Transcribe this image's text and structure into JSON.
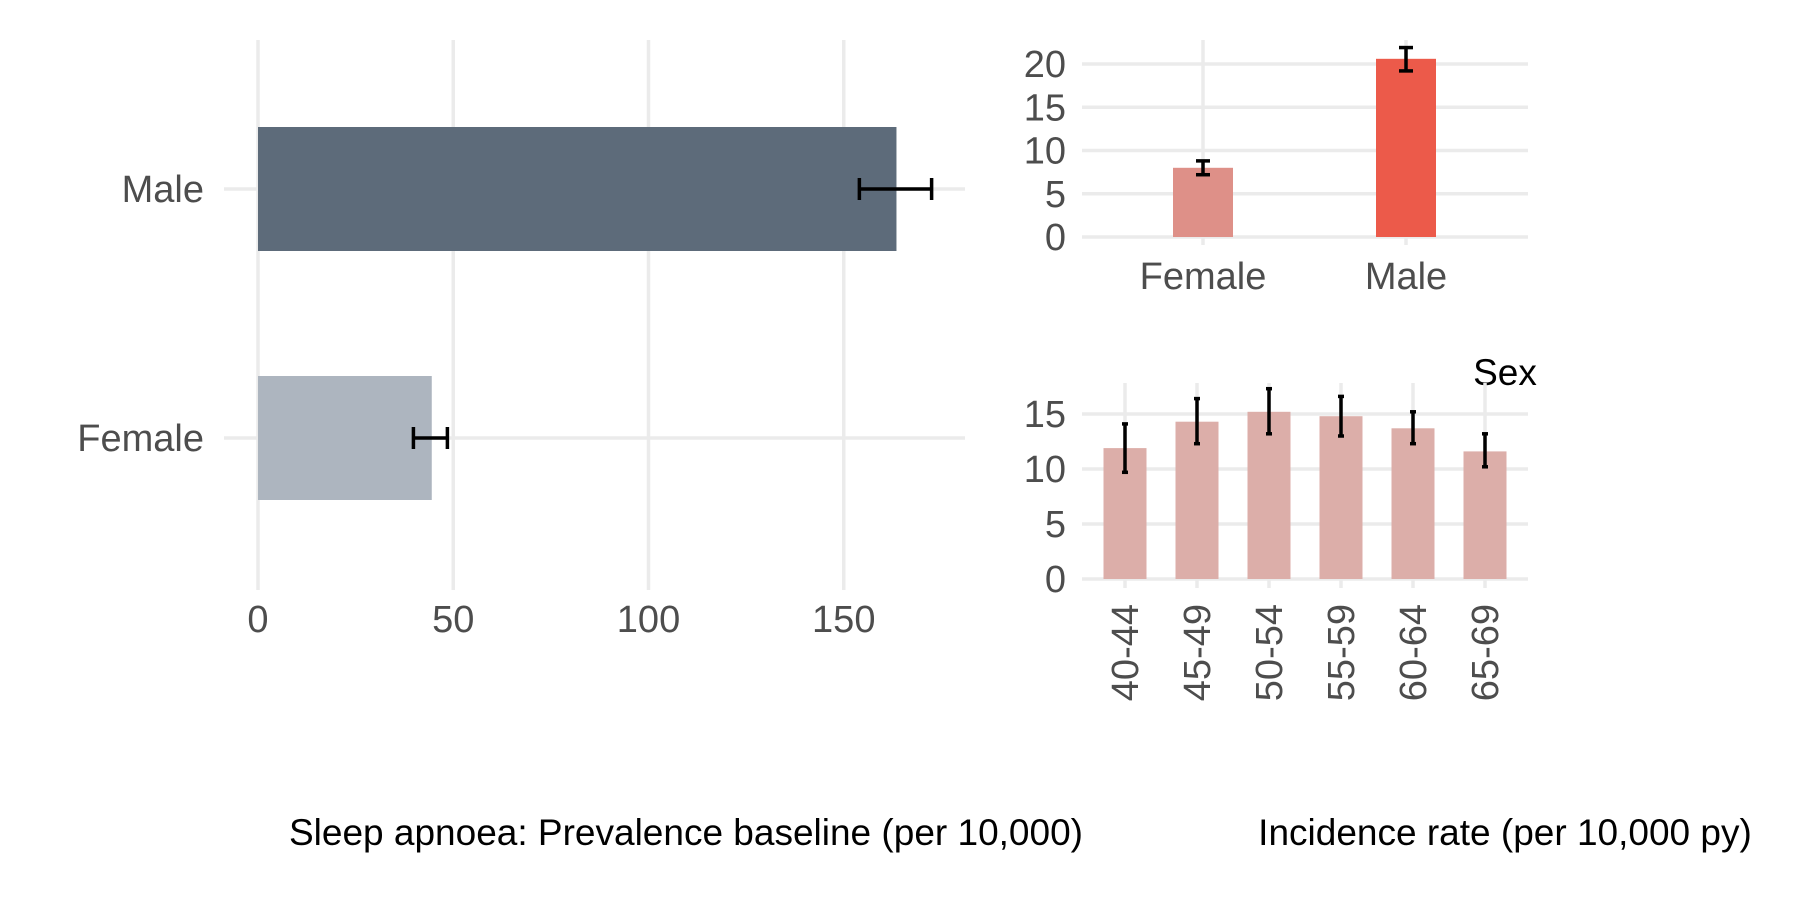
{
  "chart_data": [
    {
      "type": "bar",
      "orientation": "horizontal",
      "categories": [
        "Female",
        "Male"
      ],
      "values": [
        44.5,
        163.5
      ],
      "error_low": [
        39.8,
        154.0
      ],
      "error_high": [
        48.5,
        172.5
      ],
      "colors": [
        "#adb5bf",
        "#5d6b7a"
      ],
      "xlabel": "Sleep apnoea: Prevalence baseline (per 10,000)",
      "ylabel": "",
      "xlim": [
        0,
        182
      ],
      "xticks": [
        "0",
        "50",
        "100",
        "150"
      ],
      "grid": true
    },
    {
      "type": "bar",
      "orientation": "vertical",
      "categories": [
        "Female",
        "Male"
      ],
      "values": [
        8.0,
        20.6
      ],
      "error_low": [
        7.2,
        19.2
      ],
      "error_high": [
        8.8,
        21.9
      ],
      "colors": [
        "#de9088",
        "#ec5a4a"
      ],
      "xlabel": "Sex",
      "ylabel": "",
      "ylim": [
        0,
        22
      ],
      "yticks": [
        "0",
        "5",
        "10",
        "15",
        "20"
      ],
      "grid": true
    },
    {
      "type": "bar",
      "orientation": "vertical",
      "categories": [
        "40-44",
        "45-49",
        "50-54",
        "55-59",
        "60-64",
        "65-69"
      ],
      "values": [
        11.9,
        14.3,
        15.2,
        14.8,
        13.7,
        11.6
      ],
      "error_low": [
        9.7,
        12.3,
        13.2,
        13.0,
        12.3,
        10.2
      ],
      "error_high": [
        14.1,
        16.4,
        17.3,
        16.6,
        15.2,
        13.2
      ],
      "colors": [
        "#dcaea9"
      ],
      "xlabel": "Incidence rate (per 10,000 py)",
      "ylabel": "",
      "ylim": [
        0,
        18
      ],
      "yticks": [
        "0",
        "5",
        "10",
        "15"
      ],
      "grid": true
    }
  ]
}
